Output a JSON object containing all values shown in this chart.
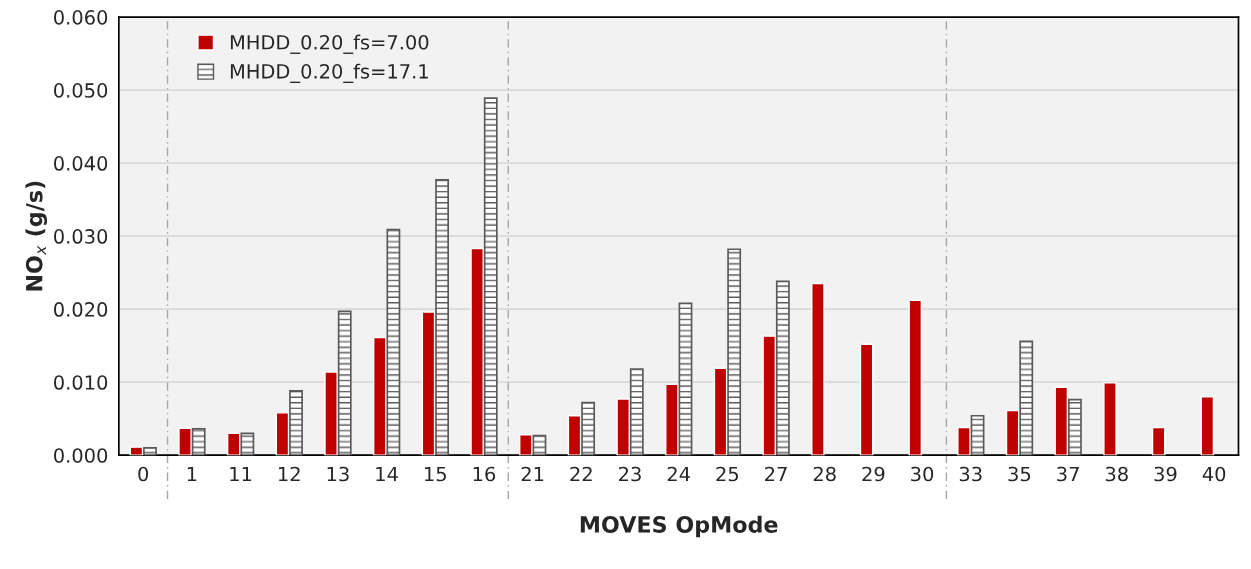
{
  "chart_data": {
    "type": "bar",
    "xlabel": "MOVES OpMode",
    "ylabel": "NO$_{x}$ (g/s)",
    "categories": [
      "0",
      "1",
      "11",
      "12",
      "13",
      "14",
      "15",
      "16",
      "21",
      "22",
      "23",
      "24",
      "25",
      "27",
      "28",
      "29",
      "30",
      "33",
      "35",
      "37",
      "38",
      "39",
      "40"
    ],
    "series": [
      {
        "name": "MHDD_0.20_fs=7.00",
        "color": "#c00000",
        "values": [
          0.0011,
          0.0037,
          0.003,
          0.0058,
          0.0114,
          0.0161,
          0.0196,
          0.0283,
          0.0028,
          0.0054,
          0.0077,
          0.0097,
          0.0119,
          0.0163,
          0.0235,
          0.0152,
          0.0212,
          0.0038,
          0.0061,
          0.0093,
          0.0099,
          0.0038,
          0.008
        ]
      },
      {
        "name": "MHDD_0.20_fs=17.1",
        "color": "#595959",
        "values": [
          0.001,
          0.0036,
          0.003,
          0.0088,
          0.0197,
          0.0309,
          0.0377,
          0.0489,
          0.0027,
          0.0072,
          0.0118,
          0.0208,
          0.0282,
          0.0238,
          null,
          null,
          null,
          0.0054,
          0.0156,
          0.0076,
          null,
          null,
          null
        ]
      }
    ],
    "ylim": [
      0,
      0.06
    ],
    "yticks": [
      {
        "value": 0,
        "label": "0.000"
      },
      {
        "value": 0.01,
        "label": "0.010"
      },
      {
        "value": 0.02,
        "label": "0.020"
      },
      {
        "value": 0.03,
        "label": "0.030"
      },
      {
        "value": 0.04,
        "label": "0.040"
      },
      {
        "value": 0.05,
        "label": "0.050"
      },
      {
        "value": 0.06,
        "label": "0.060"
      }
    ],
    "grid": "y",
    "legend": "top left"
  }
}
